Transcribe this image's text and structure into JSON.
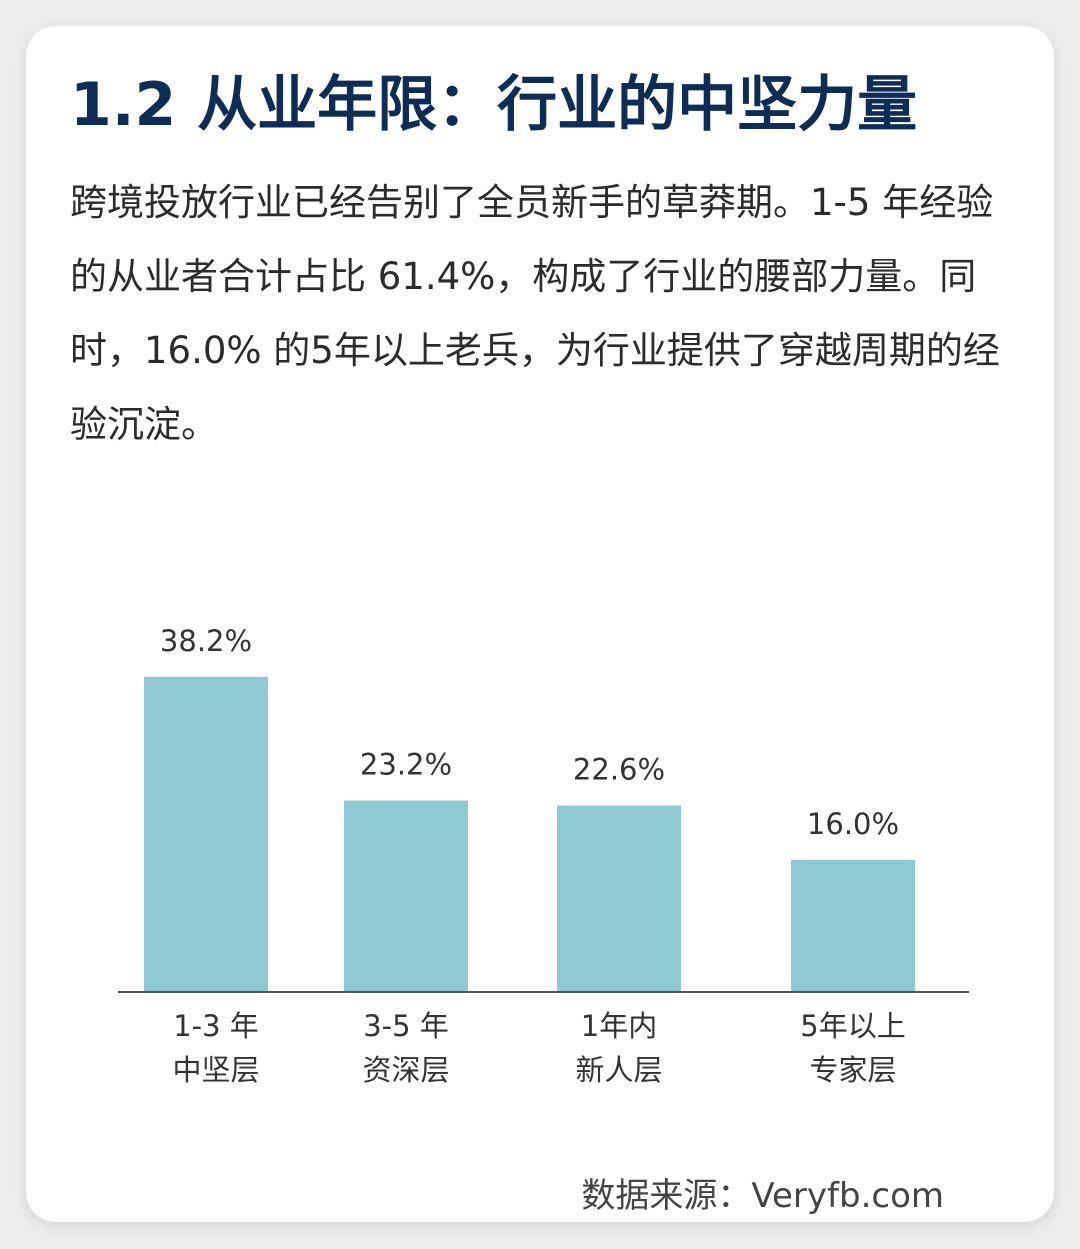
{
  "title": "1.2 从业年限：行业的中坚力量",
  "description": "跨境投放行业已经告别了全员新手的草莽期。1-5 年经验的从业者合计占比 61.4%，构成了行业的腰部力量。同时，16.0% 的5年以上老兵，为行业提供了穿越周期的经验沉淀。",
  "source": "数据来源：Veryfb.com",
  "colors": {
    "bar": "#8ec8d3",
    "title": "#0d2d57",
    "axis": "#555555"
  },
  "chart_data": {
    "type": "bar",
    "categories": [
      [
        "1-3 年",
        "中坚层"
      ],
      [
        "3-5 年",
        "资深层"
      ],
      [
        "1年内",
        "新人层"
      ],
      [
        "5年以上",
        "专家层"
      ]
    ],
    "values": [
      38.2,
      23.2,
      22.6,
      16.0
    ],
    "value_labels": [
      "38.2%",
      "23.2%",
      "22.6%",
      "16.0%"
    ],
    "unit": "%",
    "ylim": [
      0,
      40
    ],
    "grid": false,
    "legend": "none"
  }
}
